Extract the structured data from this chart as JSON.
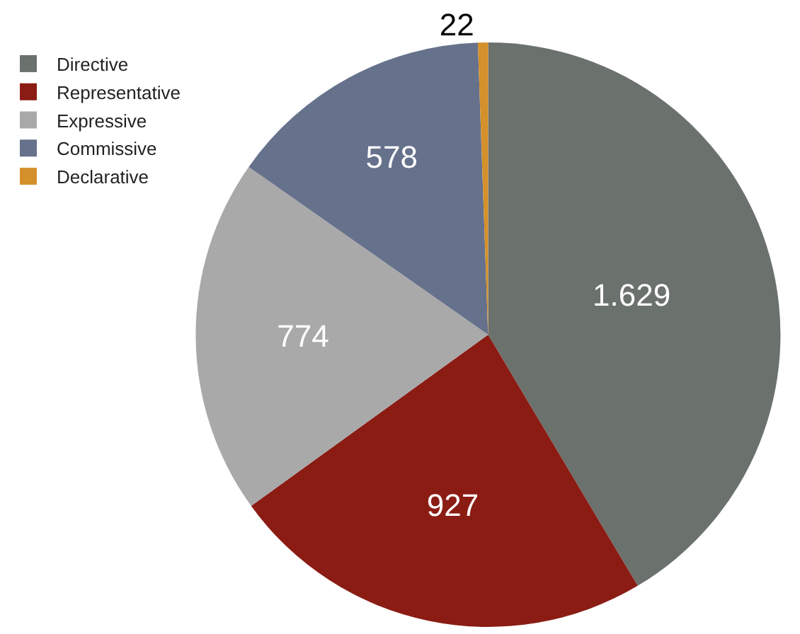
{
  "chart_data": {
    "type": "pie",
    "categories": [
      "Directive",
      "Representative",
      "Expressive",
      "Commissive",
      "Declarative"
    ],
    "values": [
      1629,
      927,
      774,
      578,
      22
    ],
    "value_labels": [
      "1.629",
      "927",
      "774",
      "578",
      "22"
    ],
    "colors": [
      "#6b716d",
      "#8b1c14",
      "#a9a9a9",
      "#66718c",
      "#d4902a"
    ],
    "legend": "top left"
  }
}
